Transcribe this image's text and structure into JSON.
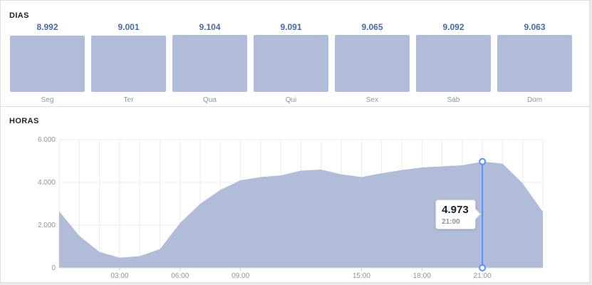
{
  "days": {
    "title": "DIAS",
    "chart_data": {
      "type": "bar",
      "categories": [
        "Seg",
        "Ter",
        "Qua",
        "Qui",
        "Sex",
        "Sáb",
        "Dom"
      ],
      "values": [
        8992,
        9001,
        9104,
        9091,
        9065,
        9092,
        9063
      ],
      "value_labels": [
        "8.992",
        "9.001",
        "9.104",
        "9.091",
        "9.065",
        "9.092",
        "9.063"
      ],
      "bar_color": "#b1bdd8",
      "value_color": "#4b67a1"
    }
  },
  "hours": {
    "title": "HORAS",
    "chart_data": {
      "type": "area",
      "x": [
        0,
        1,
        2,
        3,
        4,
        5,
        6,
        7,
        8,
        9,
        10,
        11,
        12,
        13,
        14,
        15,
        16,
        17,
        18,
        19,
        20,
        21,
        22,
        23,
        24
      ],
      "values": [
        2650,
        1500,
        750,
        480,
        550,
        880,
        2100,
        3000,
        3650,
        4100,
        4250,
        4330,
        4550,
        4600,
        4380,
        4250,
        4430,
        4580,
        4700,
        4750,
        4800,
        4973,
        4880,
        3960,
        2620
      ],
      "xlim": [
        0,
        24
      ],
      "ylim": [
        0,
        6000
      ],
      "yticks": [
        0,
        2000,
        4000,
        6000
      ],
      "ytick_labels": [
        "0",
        "2.000",
        "4.000",
        "6.000"
      ],
      "xticks": [
        3,
        6,
        9,
        15,
        18,
        21
      ],
      "xtick_labels": [
        "03:00",
        "06:00",
        "09:00",
        "15:00",
        "18:00",
        "21:00"
      ],
      "grid": true,
      "fill_color": "#b1bdd8",
      "highlight_color": "#5890ff",
      "highlight": {
        "x": 21,
        "value": "4.973",
        "label": "21:00"
      }
    }
  }
}
